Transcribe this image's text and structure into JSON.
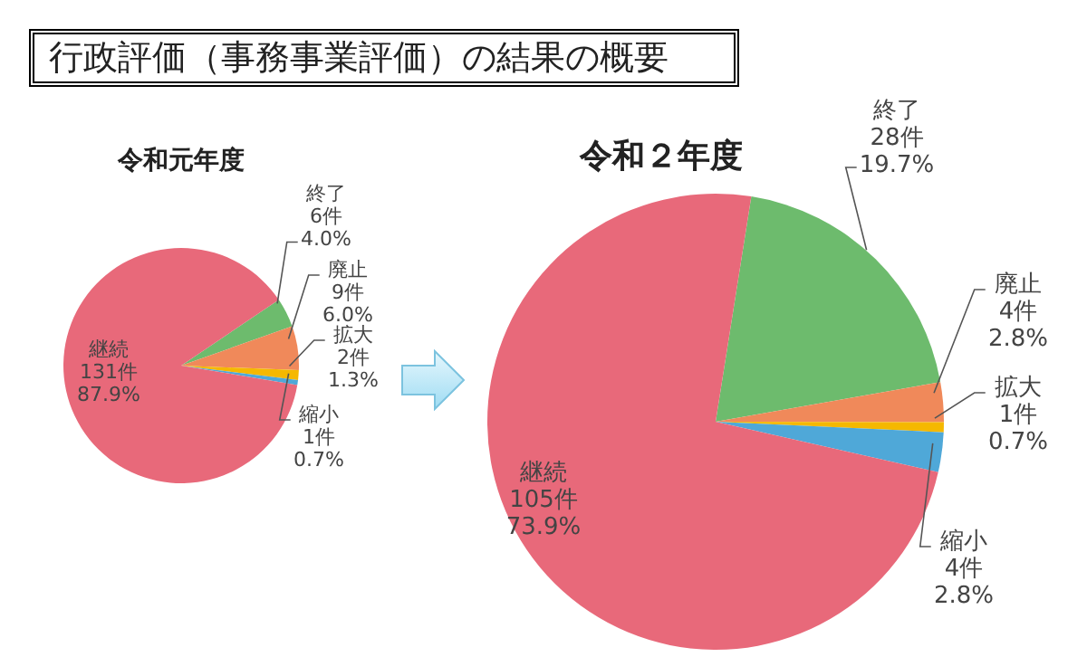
{
  "chart_data": [
    {
      "type": "pie",
      "title": "行政評価（事務事業評価）の結果の概要",
      "subtitle": "令和元年度",
      "categories": [
        "終了",
        "廃止",
        "拡大",
        "縮小",
        "継続"
      ],
      "values": [
        6,
        9,
        2,
        1,
        131
      ],
      "colors": [
        "#6dbb6d",
        "#f0895a",
        "#f5b800",
        "#4fa8d8",
        "#e8697a"
      ],
      "value_labels": [
        "6件\n4.0%",
        "9件\n6.0%",
        "2件\n1.3%",
        "1件\n0.7%",
        "131件\n87.9%"
      ]
    },
    {
      "type": "pie",
      "title": "令和２年度",
      "categories": [
        "終了",
        "廃止",
        "拡大",
        "縮小",
        "継続"
      ],
      "values": [
        28,
        4,
        1,
        4,
        105
      ],
      "colors": [
        "#6dbb6d",
        "#f0895a",
        "#f5b800",
        "#4fa8d8",
        "#e8697a"
      ],
      "value_labels": [
        "28件\n19.7%",
        "4件\n2.8%",
        "1件\n0.7%",
        "4件\n2.8%",
        "105件\n73.9%"
      ]
    }
  ]
}
